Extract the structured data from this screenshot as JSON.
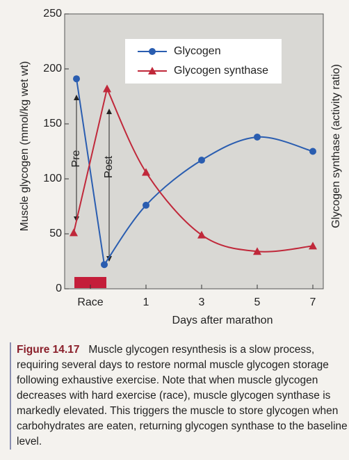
{
  "chart_data": {
    "type": "line",
    "xlabel": "Days after marathon",
    "ylabel": "Muscle glycogen (mmol/kg wet wt)",
    "y2label": "Glycogen synthase (activity ratio)",
    "xlim": [
      -1.925,
      7.375
    ],
    "xticks": [
      {
        "value": -1,
        "label": "Race"
      },
      1,
      3,
      5,
      7
    ],
    "ylim": [
      0,
      250
    ],
    "yticks": [
      0,
      50,
      100,
      150,
      200,
      250
    ],
    "series": [
      {
        "name": "Glycogen",
        "color": "#2a5db0",
        "marker": "circle",
        "x": [
          -1.5,
          -0.5,
          1,
          3,
          5,
          7
        ],
        "values": [
          191,
          22,
          76,
          117,
          138,
          125
        ]
      },
      {
        "name": "Glycogen synthase",
        "color": "#c0283a",
        "marker": "triangle",
        "x": [
          -1.6,
          -0.4,
          1,
          3,
          5,
          7
        ],
        "values": [
          51,
          182,
          106,
          49,
          34,
          39
        ]
      }
    ],
    "annotations": [
      "Pre",
      "Post"
    ]
  },
  "caption": {
    "label": "Figure 14.17",
    "text": "Muscle glycogen resynthesis is a slow process, requiring several days to restore normal muscle glycogen storage following exhaustive exercise. Note that when muscle glycogen decreases with hard exercise (race), muscle glycogen synthase is markedly elevated. This triggers the muscle to store glycogen when carbohydrates are eaten, returning glycogen synthase to the baseline level."
  }
}
